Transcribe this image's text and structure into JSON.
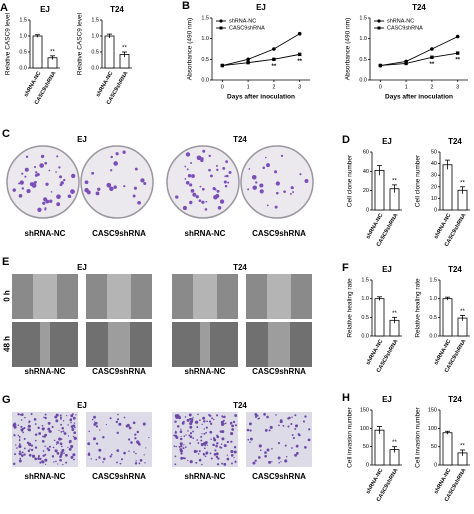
{
  "chart_data": [
    {
      "type": "bar",
      "panel": "A",
      "title": "EJ",
      "y_label": "Relative CASC9 level",
      "categories": [
        "shRNA-NC",
        "CASC9shRNA"
      ],
      "values": [
        1.0,
        0.32
      ],
      "errors": [
        0.04,
        0.06
      ],
      "color": "#ffffff",
      "ylim": [
        0,
        1.5
      ],
      "yticks": [
        {
          "value": 0,
          "label": "0.0"
        },
        {
          "value": 0.5,
          "label": "0.5"
        },
        {
          "value": 1,
          "label": "1.0"
        },
        {
          "value": 1.5,
          "label": "1.5"
        }
      ],
      "annotations": [
        "**"
      ]
    },
    {
      "type": "bar",
      "title": "T24",
      "y_label": "Relative CASC9 level",
      "categories": [
        "shRNA-NC",
        "CASC9shRNA"
      ],
      "values": [
        1.0,
        0.42
      ],
      "errors": [
        0.06,
        0.08
      ],
      "color": "#ffffff",
      "ylim": [
        0,
        1.5
      ],
      "yticks": [
        {
          "value": 0,
          "label": "0.0"
        },
        {
          "value": 0.5,
          "label": "0.5"
        },
        {
          "value": 1,
          "label": "1.0"
        },
        {
          "value": 1.5,
          "label": "1.5"
        }
      ],
      "annotations": [
        "**"
      ]
    },
    {
      "type": "line",
      "panel": "B",
      "title": "EJ",
      "y_label": "Absorbance (490 nm)",
      "x_label": "Days after inoculation",
      "x": [
        0,
        1,
        2,
        3
      ],
      "xlim": [
        -0.4,
        3.4
      ],
      "xticks": [
        0,
        1,
        2,
        3
      ],
      "ylim": [
        0,
        1.5
      ],
      "yticks": [
        {
          "value": 0,
          "label": "0.0"
        },
        {
          "value": 0.5,
          "label": "0.5"
        },
        {
          "value": 1,
          "label": "1.0"
        },
        {
          "value": 1.5,
          "label": "1.5"
        }
      ],
      "legend": "upper left",
      "series": [
        {
          "name": "shRNA-NC",
          "color": "#000000",
          "values": [
            0.35,
            0.5,
            0.75,
            1.12
          ]
        },
        {
          "name": "CASC9shRNA",
          "color": "#000000",
          "values": [
            0.35,
            0.42,
            0.5,
            0.62
          ]
        }
      ],
      "annotations": [
        "**",
        "**"
      ]
    },
    {
      "type": "line",
      "title": "T24",
      "y_label": "Absorbance (490 nm)",
      "x_label": "Days after inoculation",
      "x": [
        0,
        1,
        2,
        3
      ],
      "xlim": [
        -0.4,
        3.4
      ],
      "xticks": [
        0,
        1,
        2,
        3
      ],
      "ylim": [
        0,
        1.5
      ],
      "yticks": [
        {
          "value": 0,
          "label": "0.0"
        },
        {
          "value": 0.5,
          "label": "0.5"
        },
        {
          "value": 1,
          "label": "1.0"
        },
        {
          "value": 1.5,
          "label": "1.5"
        }
      ],
      "legend": "upper left",
      "series": [
        {
          "name": "shRNA-NC",
          "color": "#000000",
          "values": [
            0.35,
            0.45,
            0.75,
            1.05
          ]
        },
        {
          "name": "CASC9shRNA",
          "color": "#000000",
          "values": [
            0.35,
            0.4,
            0.55,
            0.65
          ]
        }
      ],
      "annotations": [
        "**",
        "**"
      ]
    },
    {
      "type": "bar",
      "panel": "D",
      "title": "EJ",
      "y_label": "Cell clone number",
      "categories": [
        "shRNA-NC",
        "CASC9shRNA"
      ],
      "values": [
        41,
        22
      ],
      "errors": [
        5,
        4
      ],
      "color": "#ffffff",
      "ylim": [
        0,
        60
      ],
      "yticks": [
        0,
        20,
        40,
        60
      ],
      "annotations": [
        "**"
      ]
    },
    {
      "type": "bar",
      "title": "T24",
      "y_label": "Cell clone number",
      "categories": [
        "shRNA-NC",
        "CASC9shRNA"
      ],
      "values": [
        39,
        17
      ],
      "errors": [
        4,
        3
      ],
      "color": "#ffffff",
      "ylim": [
        0,
        50
      ],
      "yticks": [
        0,
        10,
        20,
        30,
        40,
        50
      ],
      "annotations": [
        "**"
      ]
    },
    {
      "type": "bar",
      "panel": "F",
      "title": "EJ",
      "y_label": "Relative healing rate",
      "categories": [
        "shRNA-NC",
        "CASC9shRNA"
      ],
      "values": [
        1.0,
        0.42
      ],
      "errors": [
        0.05,
        0.08
      ],
      "color": "#ffffff",
      "ylim": [
        0,
        1.5
      ],
      "yticks": [
        {
          "value": 0,
          "label": "0.0"
        },
        {
          "value": 0.5,
          "label": "0.5"
        },
        {
          "value": 1,
          "label": "1.0"
        },
        {
          "value": 1.5,
          "label": "1.5"
        }
      ],
      "annotations": [
        "**"
      ]
    },
    {
      "type": "bar",
      "title": "T24",
      "y_label": "Relative healing rate",
      "categories": [
        "shRNA-NC",
        "CASC9shRNA"
      ],
      "values": [
        1.0,
        0.48
      ],
      "errors": [
        0.04,
        0.07
      ],
      "color": "#ffffff",
      "ylim": [
        0,
        1.5
      ],
      "yticks": [
        {
          "value": 0,
          "label": "0.0"
        },
        {
          "value": 0.5,
          "label": "0.5"
        },
        {
          "value": 1,
          "label": "1.0"
        },
        {
          "value": 1.5,
          "label": "1.5"
        }
      ],
      "annotations": [
        "**"
      ]
    },
    {
      "type": "bar",
      "panel": "H",
      "title": "EJ",
      "y_label": "Cell invasion number",
      "categories": [
        "shRNA-NC",
        "CASC9shRNA"
      ],
      "values": [
        95,
        42
      ],
      "errors": [
        10,
        8
      ],
      "color": "#ffffff",
      "ylim": [
        0,
        150
      ],
      "yticks": [
        0,
        50,
        100,
        150
      ],
      "annotations": [
        "**"
      ]
    },
    {
      "type": "bar",
      "title": "T24",
      "y_label": "Cell invasion number",
      "categories": [
        "shRNA-NC",
        "CASC9shRNA"
      ],
      "values": [
        88,
        33
      ],
      "errors": [
        4,
        8
      ],
      "color": "#ffffff",
      "ylim": [
        0,
        150
      ],
      "yticks": [
        0,
        50,
        100,
        150
      ],
      "annotations": [
        "**"
      ]
    }
  ],
  "image_panels": [
    {
      "panel": "C",
      "groups": [
        "EJ",
        "T24"
      ],
      "columns": [
        "shRNA-NC",
        "CASC9shRNA",
        "shRNA-NC",
        "CASC9shRNA"
      ]
    },
    {
      "panel": "E",
      "groups": [
        "EJ",
        "T24"
      ],
      "rows": [
        "0 h",
        "48 h"
      ],
      "columns": [
        "shRNA-NC",
        "CASC9shRNA",
        "shRNA-NC",
        "CASC9shRNA"
      ]
    },
    {
      "panel": "G",
      "groups": [
        "EJ",
        "T24"
      ],
      "columns": [
        "shRNA-NC",
        "CASC9shRNA",
        "shRNA-NC",
        "CASC9shRNA"
      ]
    }
  ]
}
